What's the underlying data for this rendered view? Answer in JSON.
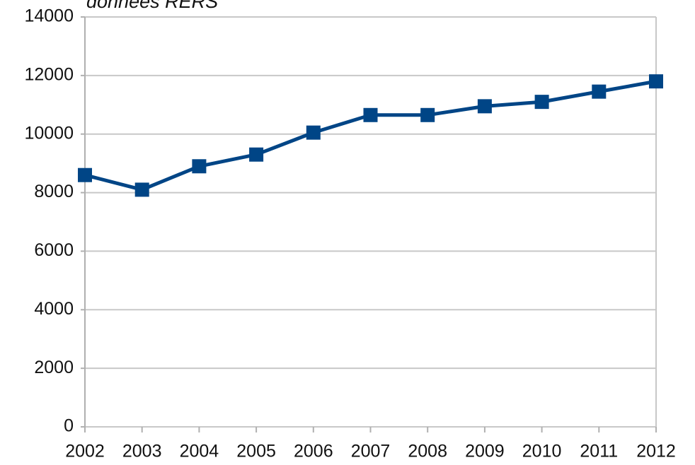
{
  "chart_data": {
    "type": "line",
    "title": "données RERS",
    "x": [
      2002,
      2003,
      2004,
      2005,
      2006,
      2007,
      2008,
      2009,
      2010,
      2011,
      2012
    ],
    "series": [
      {
        "name": "données RERS",
        "color": "#004586",
        "values": [
          8600,
          8100,
          8900,
          9300,
          10050,
          10650,
          10650,
          10950,
          11100,
          11450,
          11800
        ]
      }
    ],
    "xlim": [
      2002,
      2012
    ],
    "xticks": [
      2002,
      2003,
      2004,
      2005,
      2006,
      2007,
      2008,
      2009,
      2010,
      2011,
      2012
    ],
    "ylim": [
      0,
      14000
    ],
    "yticks": [
      0,
      2000,
      4000,
      6000,
      8000,
      10000,
      12000,
      14000
    ],
    "grid": true
  }
}
